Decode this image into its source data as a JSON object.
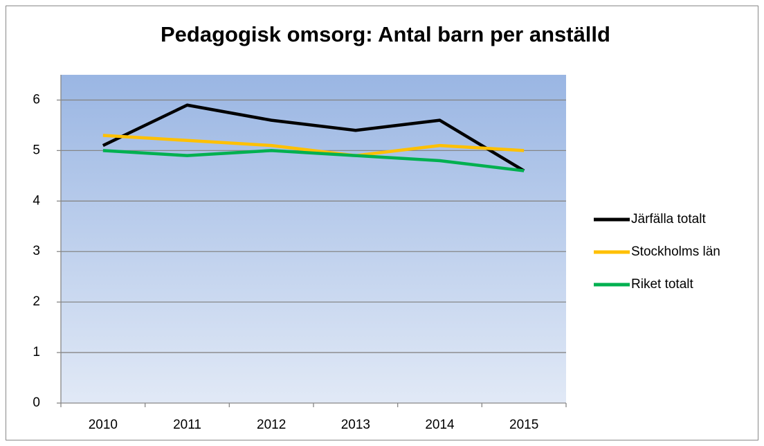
{
  "chart_data": {
    "type": "line",
    "title": "Pedagogisk omsorg: Antal barn per anställd",
    "categories": [
      "2010",
      "2011",
      "2012",
      "2013",
      "2014",
      "2015"
    ],
    "series": [
      {
        "name": "Järfälla totalt",
        "color": "#000000",
        "values": [
          5.1,
          5.9,
          5.6,
          5.4,
          5.6,
          4.6
        ]
      },
      {
        "name": "Stockholms län",
        "color": "#ffc000",
        "values": [
          5.3,
          5.2,
          5.1,
          4.9,
          5.1,
          5.0
        ]
      },
      {
        "name": "Riket totalt",
        "color": "#00b050",
        "values": [
          5.0,
          4.9,
          5.0,
          4.9,
          4.8,
          4.6
        ]
      }
    ],
    "ylim": [
      0,
      6.5
    ],
    "yticks": [
      0,
      1,
      2,
      3,
      4,
      5,
      6
    ],
    "grid": true,
    "legend": "right"
  }
}
